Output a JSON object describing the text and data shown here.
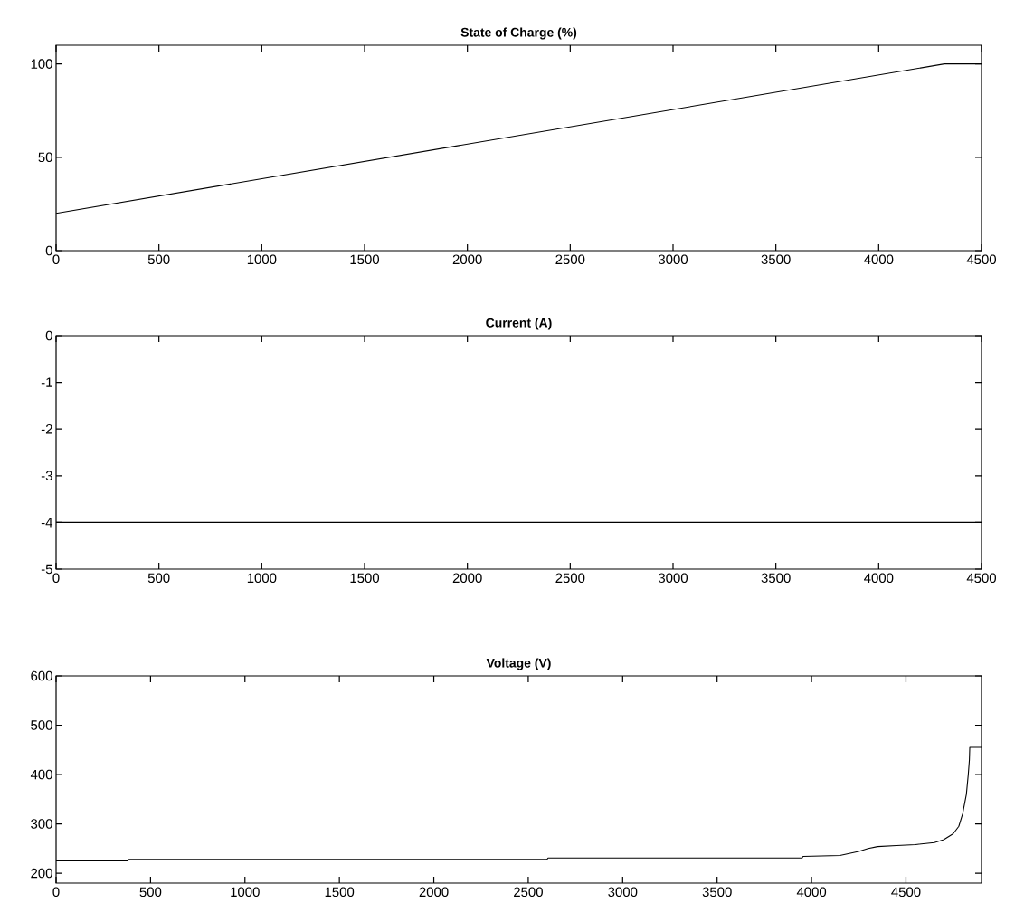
{
  "chart_data": [
    {
      "type": "line",
      "title": "State of Charge (%)",
      "x": [
        0,
        4320,
        4500
      ],
      "values": [
        20,
        100,
        100
      ],
      "color": "#000000",
      "xlim": [
        0,
        4500
      ],
      "ylim": [
        0,
        110
      ],
      "xticks": [
        0,
        500,
        1000,
        1500,
        2000,
        2500,
        3000,
        3500,
        4000,
        4500
      ],
      "yticks": [
        0,
        50,
        100
      ]
    },
    {
      "type": "line",
      "title": "Current (A)",
      "x": [
        0,
        4500
      ],
      "values": [
        -4,
        -4
      ],
      "color": "#000000",
      "xlim": [
        0,
        4500
      ],
      "ylim": [
        -5,
        0
      ],
      "xticks": [
        0,
        500,
        1000,
        1500,
        2000,
        2500,
        3000,
        3500,
        4000,
        4500
      ],
      "yticks": [
        -5,
        -4,
        -3,
        -2,
        -1,
        0
      ]
    },
    {
      "type": "line",
      "title": "Voltage (V)",
      "x": [
        0,
        380,
        385,
        2600,
        2605,
        3950,
        3955,
        4150,
        4250,
        4300,
        4350,
        4450,
        4550,
        4650,
        4700,
        4750,
        4780,
        4800,
        4820,
        4830,
        4836,
        4838,
        4900
      ],
      "values": [
        225,
        225,
        228,
        228,
        231,
        231,
        234,
        236,
        244,
        250,
        254,
        256,
        258,
        262,
        268,
        280,
        295,
        320,
        360,
        400,
        430,
        455,
        455
      ],
      "color": "#000000",
      "xlim": [
        0,
        4900
      ],
      "ylim": [
        180,
        600
      ],
      "xticks": [
        0,
        500,
        1000,
        1500,
        2000,
        2500,
        3000,
        3500,
        4000,
        4500
      ],
      "yticks": [
        200,
        300,
        400,
        500,
        600
      ]
    }
  ]
}
